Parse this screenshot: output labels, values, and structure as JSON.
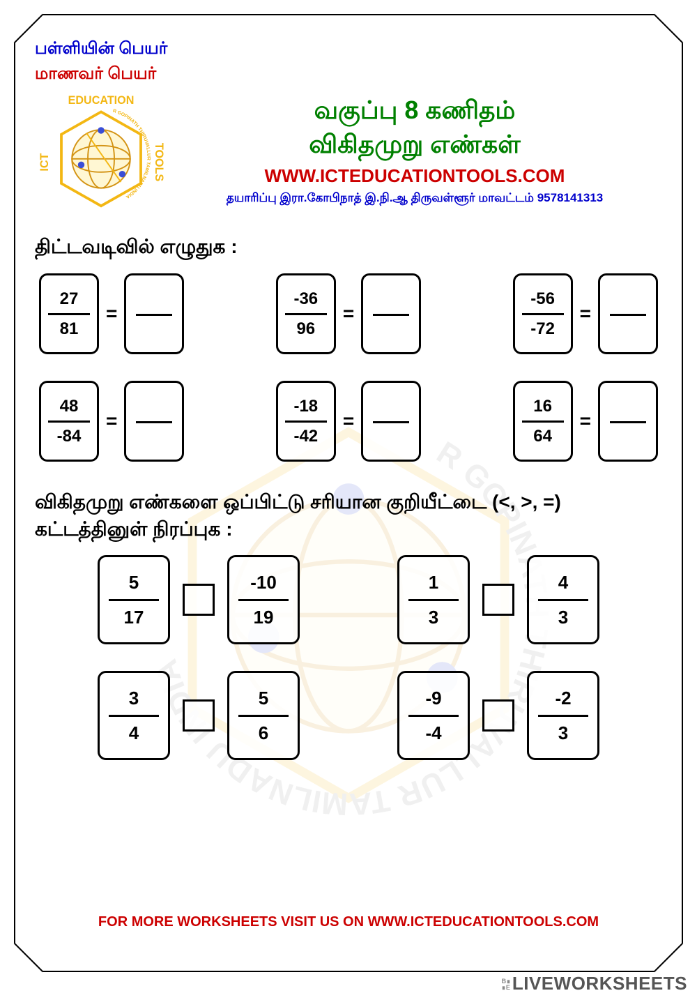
{
  "header": {
    "school_label": "பள்ளியின் பெயர்",
    "student_label": "மாணவர் பெயர்"
  },
  "title": {
    "line1": "வகுப்பு 8 கணிதம்",
    "line2": "விகிதமுறு எண்கள்",
    "url": "WWW.ICTEDUCATIONTOOLS.COM",
    "credit": "தயாரிப்பு இரா.கோபிநாத்  இ.நி.ஆ திருவள்ளூர் மாவட்டம்  9578141313"
  },
  "logo": {
    "top_text": "EDUCATION",
    "left_text": "ICT",
    "right_text": "TOOLS",
    "ring_text": "R GOPINATH THIRUVALLUR TAMILNADU INDIA",
    "hex_stroke": "#f2b100",
    "text_color": "#f2b100",
    "globe_stroke": "#d08a00",
    "dot_color": "#2a3fd4"
  },
  "section1": {
    "heading": "திட்டவடிவில் எழுதுக :",
    "rows": [
      [
        {
          "n": "27",
          "d": "81"
        },
        {
          "n": "-36",
          "d": "96"
        },
        {
          "n": "-56",
          "d": "-72"
        }
      ],
      [
        {
          "n": "48",
          "d": "-84"
        },
        {
          "n": "-18",
          "d": "-42"
        },
        {
          "n": "16",
          "d": "64"
        }
      ]
    ],
    "equals": "="
  },
  "section2": {
    "heading": "விகிதமுறு எண்களை ஒப்பிட்டு சரியான குறியீட்டை (<, >, =) கட்டத்தினுள் நிரப்புக :",
    "rows": [
      [
        {
          "a": {
            "n": "5",
            "d": "17"
          },
          "b": {
            "n": "-10",
            "d": "19"
          }
        },
        {
          "a": {
            "n": "1",
            "d": "3"
          },
          "b": {
            "n": "4",
            "d": "3"
          }
        }
      ],
      [
        {
          "a": {
            "n": "3",
            "d": "4"
          },
          "b": {
            "n": "5",
            "d": "6"
          }
        },
        {
          "a": {
            "n": "-9",
            "d": "-4"
          },
          "b": {
            "n": "-2",
            "d": "3"
          }
        }
      ]
    ]
  },
  "footer": "FOR MORE WORKSHEETS VISIT US ON WWW.ICTEDUCATIONTOOLS.COM",
  "brand": "LIVEWORKSHEETS",
  "colors": {
    "blue": "#0000cc",
    "red": "#cc0000",
    "green": "#008000",
    "border": "#000000"
  }
}
